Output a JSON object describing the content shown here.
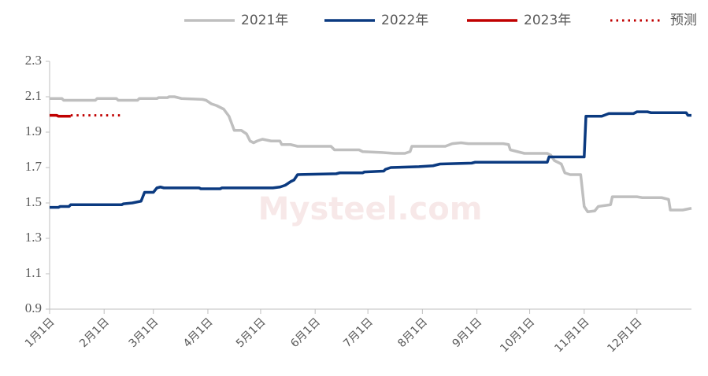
{
  "chart_data": {
    "type": "line",
    "watermark": "Mysteel.com",
    "xlim": [
      0,
      365
    ],
    "xticks": [
      {
        "value": 0,
        "label": "1月1日"
      },
      {
        "value": 31,
        "label": "2月1日"
      },
      {
        "value": 59,
        "label": "3月1日"
      },
      {
        "value": 90,
        "label": "4月1日"
      },
      {
        "value": 120,
        "label": "5月1日"
      },
      {
        "value": 151,
        "label": "6月1日"
      },
      {
        "value": 181,
        "label": "7月1日"
      },
      {
        "value": 212,
        "label": "8月1日"
      },
      {
        "value": 243,
        "label": "9月1日"
      },
      {
        "value": 273,
        "label": "10月1日"
      },
      {
        "value": 304,
        "label": "11月1日"
      },
      {
        "value": 334,
        "label": "12月1日"
      }
    ],
    "ylim": [
      0.9,
      2.3
    ],
    "yticks": [
      0.9,
      1.1,
      1.3,
      1.5,
      1.7,
      1.9,
      2.1,
      2.3
    ],
    "grid": false,
    "legend": "top",
    "series": [
      {
        "name": "2021年",
        "color": "#bfbfbf",
        "dash": "solid",
        "x": [
          0,
          7,
          8,
          26,
          27,
          38,
          39,
          50,
          51,
          61,
          62,
          67,
          68,
          71,
          75,
          87,
          89,
          92,
          95,
          99,
          102,
          105,
          109,
          112,
          114,
          116,
          118,
          121,
          126,
          131,
          132,
          137,
          141,
          160,
          162,
          176,
          178,
          189,
          196,
          202,
          205,
          206,
          225,
          229,
          234,
          238,
          258,
          261,
          262,
          266,
          270,
          283,
          285,
          287,
          291,
          293,
          296,
          302,
          304,
          306,
          310,
          312,
          319,
          320,
          334,
          337,
          348,
          352,
          353,
          360,
          365
        ],
        "values": [
          2.09,
          2.09,
          2.08,
          2.08,
          2.09,
          2.09,
          2.08,
          2.08,
          2.09,
          2.09,
          2.095,
          2.095,
          2.1,
          2.1,
          2.09,
          2.085,
          2.08,
          2.06,
          2.05,
          2.03,
          1.99,
          1.91,
          1.91,
          1.89,
          1.85,
          1.84,
          1.85,
          1.86,
          1.85,
          1.85,
          1.83,
          1.83,
          1.82,
          1.82,
          1.8,
          1.8,
          1.79,
          1.785,
          1.78,
          1.78,
          1.79,
          1.82,
          1.82,
          1.835,
          1.84,
          1.835,
          1.835,
          1.83,
          1.8,
          1.79,
          1.78,
          1.78,
          1.77,
          1.74,
          1.72,
          1.67,
          1.66,
          1.66,
          1.48,
          1.45,
          1.455,
          1.48,
          1.49,
          1.535,
          1.535,
          1.53,
          1.53,
          1.52,
          1.46,
          1.46,
          1.47
        ]
      },
      {
        "name": "2022年",
        "color": "#0b3a80",
        "dash": "solid",
        "x": [
          0,
          5,
          6,
          11,
          12,
          41,
          42,
          47,
          52,
          54,
          59,
          61,
          63,
          65,
          85,
          86,
          97,
          98,
          127,
          131,
          134,
          137,
          139,
          141,
          163,
          165,
          178,
          179,
          190,
          191,
          194,
          210,
          218,
          222,
          240,
          242,
          283,
          284,
          304,
          305,
          314,
          318,
          332,
          334,
          340,
          342,
          362,
          363,
          365
        ],
        "values": [
          1.475,
          1.475,
          1.48,
          1.48,
          1.49,
          1.49,
          1.495,
          1.5,
          1.51,
          1.56,
          1.56,
          1.585,
          1.59,
          1.585,
          1.585,
          1.58,
          1.58,
          1.585,
          1.585,
          1.59,
          1.6,
          1.62,
          1.63,
          1.66,
          1.665,
          1.67,
          1.67,
          1.675,
          1.68,
          1.69,
          1.7,
          1.705,
          1.71,
          1.72,
          1.725,
          1.73,
          1.73,
          1.76,
          1.76,
          1.99,
          1.99,
          2.005,
          2.005,
          2.015,
          2.015,
          2.01,
          2.01,
          1.995,
          1.995
        ]
      },
      {
        "name": "2023年",
        "color": "#c00000",
        "dash": "solid",
        "x": [
          0,
          4,
          5,
          12
        ],
        "values": [
          1.995,
          1.995,
          1.99,
          1.99
        ]
      },
      {
        "name": "预测",
        "color": "#c00000",
        "dash": "dotted",
        "x": [
          12,
          40
        ],
        "values": [
          1.995,
          1.995
        ]
      }
    ]
  }
}
